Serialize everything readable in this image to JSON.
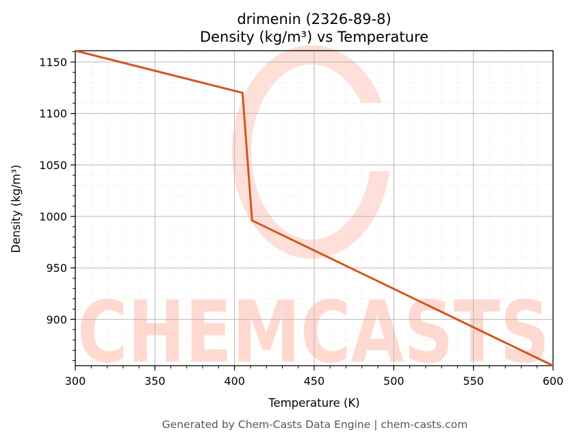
{
  "chart_data": {
    "type": "line",
    "title": "drimenin (2326-89-8)",
    "subtitle": "Density (kg/m³) vs Temperature",
    "xlabel": "Temperature (K)",
    "ylabel": "Density (kg/m³)",
    "xlim": [
      300,
      600
    ],
    "ylim": [
      855,
      1161
    ],
    "xticks": [
      300,
      350,
      400,
      450,
      500,
      550,
      600
    ],
    "yticks": [
      900,
      950,
      1000,
      1050,
      1100,
      1150
    ],
    "grid": true,
    "series": [
      {
        "color": "#d4541f",
        "x": [
          300,
          405,
          411,
          600
        ],
        "y": [
          1161,
          1120,
          996,
          855
        ]
      }
    ]
  },
  "watermark": {
    "text": "CHEMCASTS",
    "color": "#ffd9d0"
  },
  "footer": "Generated by Chem-Casts Data Engine | chem-casts.com"
}
